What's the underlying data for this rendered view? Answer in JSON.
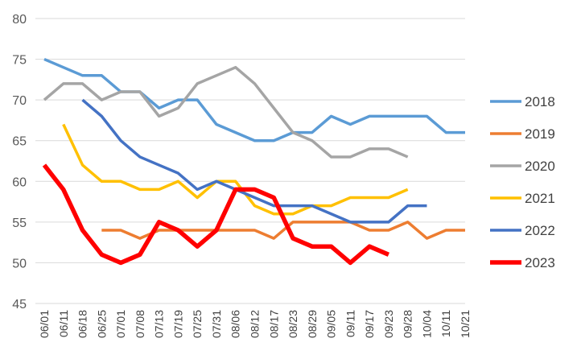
{
  "chart_data": {
    "type": "line",
    "title": "",
    "xlabel": "",
    "ylabel": "",
    "ylim": [
      45,
      80
    ],
    "yticks": [
      "45",
      "50",
      "55",
      "60",
      "65",
      "70",
      "75",
      "80"
    ],
    "grid": "horizontal",
    "legend_position": "right",
    "categories": [
      "06/01",
      "06/11",
      "06/18",
      "06/25",
      "07/01",
      "07/08",
      "07/13",
      "07/19",
      "07/25",
      "07/31",
      "08/06",
      "08/12",
      "08/17",
      "08/23",
      "08/29",
      "09/05",
      "09/11",
      "09/17",
      "09/23",
      "09/28",
      "10/04",
      "10/11",
      "10/21"
    ],
    "series": [
      {
        "name": "2018",
        "color": "#5B9BD5",
        "width": 3.5,
        "values": [
          75,
          74,
          73,
          73,
          71,
          71,
          69,
          70,
          70,
          67,
          66,
          65,
          65,
          66,
          66,
          68,
          67,
          68,
          68,
          68,
          68,
          66,
          66
        ]
      },
      {
        "name": "2019",
        "color": "#ED7D31",
        "width": 3.5,
        "values": [
          null,
          null,
          null,
          54,
          54,
          53,
          54,
          54,
          54,
          54,
          54,
          54,
          53,
          55,
          55,
          55,
          55,
          54,
          54,
          55,
          53,
          54,
          54
        ]
      },
      {
        "name": "2020",
        "color": "#A5A5A5",
        "width": 3.5,
        "values": [
          70,
          72,
          72,
          70,
          71,
          71,
          68,
          69,
          72,
          73,
          74,
          72,
          69,
          66,
          65,
          63,
          63,
          64,
          64,
          63,
          null,
          null,
          null
        ]
      },
      {
        "name": "2021",
        "color": "#FFC000",
        "width": 3.5,
        "values": [
          null,
          67,
          62,
          60,
          60,
          59,
          59,
          60,
          58,
          60,
          60,
          57,
          56,
          56,
          57,
          57,
          58,
          58,
          58,
          59,
          null,
          null,
          null
        ]
      },
      {
        "name": "2022",
        "color": "#4472C4",
        "width": 3.5,
        "values": [
          null,
          null,
          70,
          68,
          65,
          63,
          62,
          61,
          59,
          60,
          59,
          58,
          57,
          57,
          57,
          56,
          55,
          55,
          55,
          57,
          57,
          null,
          null
        ]
      },
      {
        "name": "2023",
        "color": "#FF0000",
        "width": 5.5,
        "values": [
          62,
          59,
          54,
          51,
          50,
          51,
          55,
          54,
          52,
          54,
          59,
          59,
          58,
          53,
          52,
          52,
          50,
          52,
          51,
          null,
          null,
          null,
          null
        ]
      }
    ]
  }
}
